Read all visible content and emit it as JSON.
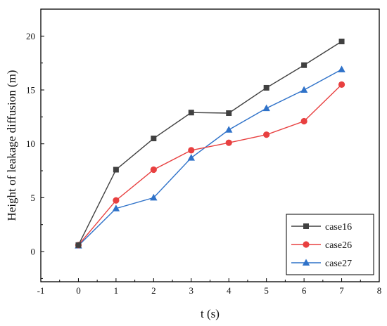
{
  "chart_data": {
    "type": "line",
    "title": "",
    "xlabel": "t (s)",
    "ylabel": "Height of leakage diffusion (m)",
    "xlim": [
      -1,
      8
    ],
    "ylim": [
      -2.8,
      22.5
    ],
    "xticks": [
      -1,
      0,
      1,
      2,
      3,
      4,
      5,
      6,
      7,
      8
    ],
    "yticks": [
      0,
      5,
      10,
      15,
      20
    ],
    "x": [
      0,
      1,
      2,
      3,
      4,
      5,
      6,
      7
    ],
    "grid": false,
    "legend_position": "bottom-right",
    "series": [
      {
        "name": "case16",
        "color": "#404040",
        "marker": "square",
        "values": [
          0.6,
          7.6,
          10.5,
          12.9,
          12.85,
          15.2,
          17.3,
          19.5
        ]
      },
      {
        "name": "case26",
        "color": "#e84040",
        "marker": "circle",
        "values": [
          0.6,
          4.75,
          7.6,
          9.4,
          10.1,
          10.85,
          12.1,
          15.5
        ]
      },
      {
        "name": "case27",
        "color": "#2f72c9",
        "marker": "triangle",
        "values": [
          0.55,
          4.0,
          5.0,
          8.7,
          11.3,
          13.3,
          15.0,
          16.9
        ]
      }
    ]
  }
}
